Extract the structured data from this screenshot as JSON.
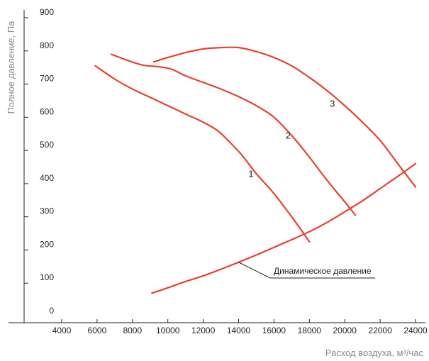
{
  "chart_data": {
    "type": "line",
    "title": "",
    "xlabel": "Расход воздуха, м³/час",
    "ylabel": "Полное давление, Па",
    "xlim": [
      4000,
      24000
    ],
    "ylim": [
      0,
      900
    ],
    "x_ticks": [
      4000,
      6000,
      8000,
      10000,
      12000,
      14000,
      16000,
      18000,
      20000,
      22000,
      24000
    ],
    "x_tick_labels": [
      "4000",
      "6000",
      "8000",
      "10000",
      "12000",
      "14000",
      "16000",
      "18000",
      "20000",
      "22000",
      "24000"
    ],
    "y_ticks": [
      0,
      100,
      200,
      300,
      400,
      500,
      600,
      700,
      800,
      900
    ],
    "y_tick_labels": [
      "0",
      "100",
      "200",
      "300",
      "400",
      "500",
      "600",
      "700",
      "800",
      "900"
    ],
    "grid": false,
    "line_color": "#e8412f",
    "series": [
      {
        "name": "1",
        "points": [
          [
            5900,
            755
          ],
          [
            7000,
            715
          ],
          [
            8000,
            685
          ],
          [
            9000,
            660
          ],
          [
            10000,
            635
          ],
          [
            11000,
            610
          ],
          [
            12000,
            585
          ],
          [
            12800,
            560
          ],
          [
            13500,
            525
          ],
          [
            14200,
            485
          ],
          [
            15000,
            430
          ],
          [
            16000,
            370
          ],
          [
            17000,
            300
          ],
          [
            18000,
            225
          ]
        ]
      },
      {
        "name": "2",
        "points": [
          [
            6800,
            790
          ],
          [
            7800,
            770
          ],
          [
            8600,
            757
          ],
          [
            9500,
            752
          ],
          [
            10200,
            745
          ],
          [
            11000,
            725
          ],
          [
            12000,
            705
          ],
          [
            13000,
            685
          ],
          [
            14000,
            662
          ],
          [
            15000,
            635
          ],
          [
            16000,
            600
          ],
          [
            17000,
            545
          ],
          [
            18000,
            480
          ],
          [
            19000,
            410
          ],
          [
            20000,
            345
          ],
          [
            20600,
            305
          ]
        ]
      },
      {
        "name": "3",
        "points": [
          [
            9200,
            767
          ],
          [
            10000,
            780
          ],
          [
            11000,
            795
          ],
          [
            12000,
            806
          ],
          [
            13000,
            810
          ],
          [
            14000,
            810
          ],
          [
            15000,
            798
          ],
          [
            16000,
            780
          ],
          [
            17000,
            755
          ],
          [
            18000,
            720
          ],
          [
            19000,
            680
          ],
          [
            20000,
            635
          ],
          [
            21000,
            585
          ],
          [
            22000,
            530
          ],
          [
            23000,
            460
          ],
          [
            24000,
            390
          ]
        ]
      },
      {
        "name": "Динамическое давление",
        "points": [
          [
            9100,
            70
          ],
          [
            10000,
            86
          ],
          [
            11000,
            105
          ],
          [
            12000,
            122
          ],
          [
            13000,
            142
          ],
          [
            14000,
            163
          ],
          [
            15000,
            185
          ],
          [
            16000,
            208
          ],
          [
            17000,
            231
          ],
          [
            18000,
            255
          ],
          [
            19000,
            283
          ],
          [
            20000,
            315
          ],
          [
            21000,
            348
          ],
          [
            22000,
            385
          ],
          [
            23000,
            422
          ],
          [
            24000,
            460
          ]
        ]
      }
    ],
    "curve_labels": [
      {
        "text": "1",
        "x": 14700,
        "y": 420
      },
      {
        "text": "2",
        "x": 16800,
        "y": 535
      },
      {
        "text": "3",
        "x": 19300,
        "y": 632
      }
    ],
    "annotation": {
      "text": "Динамическое давление",
      "point": [
        14000,
        163
      ]
    }
  }
}
